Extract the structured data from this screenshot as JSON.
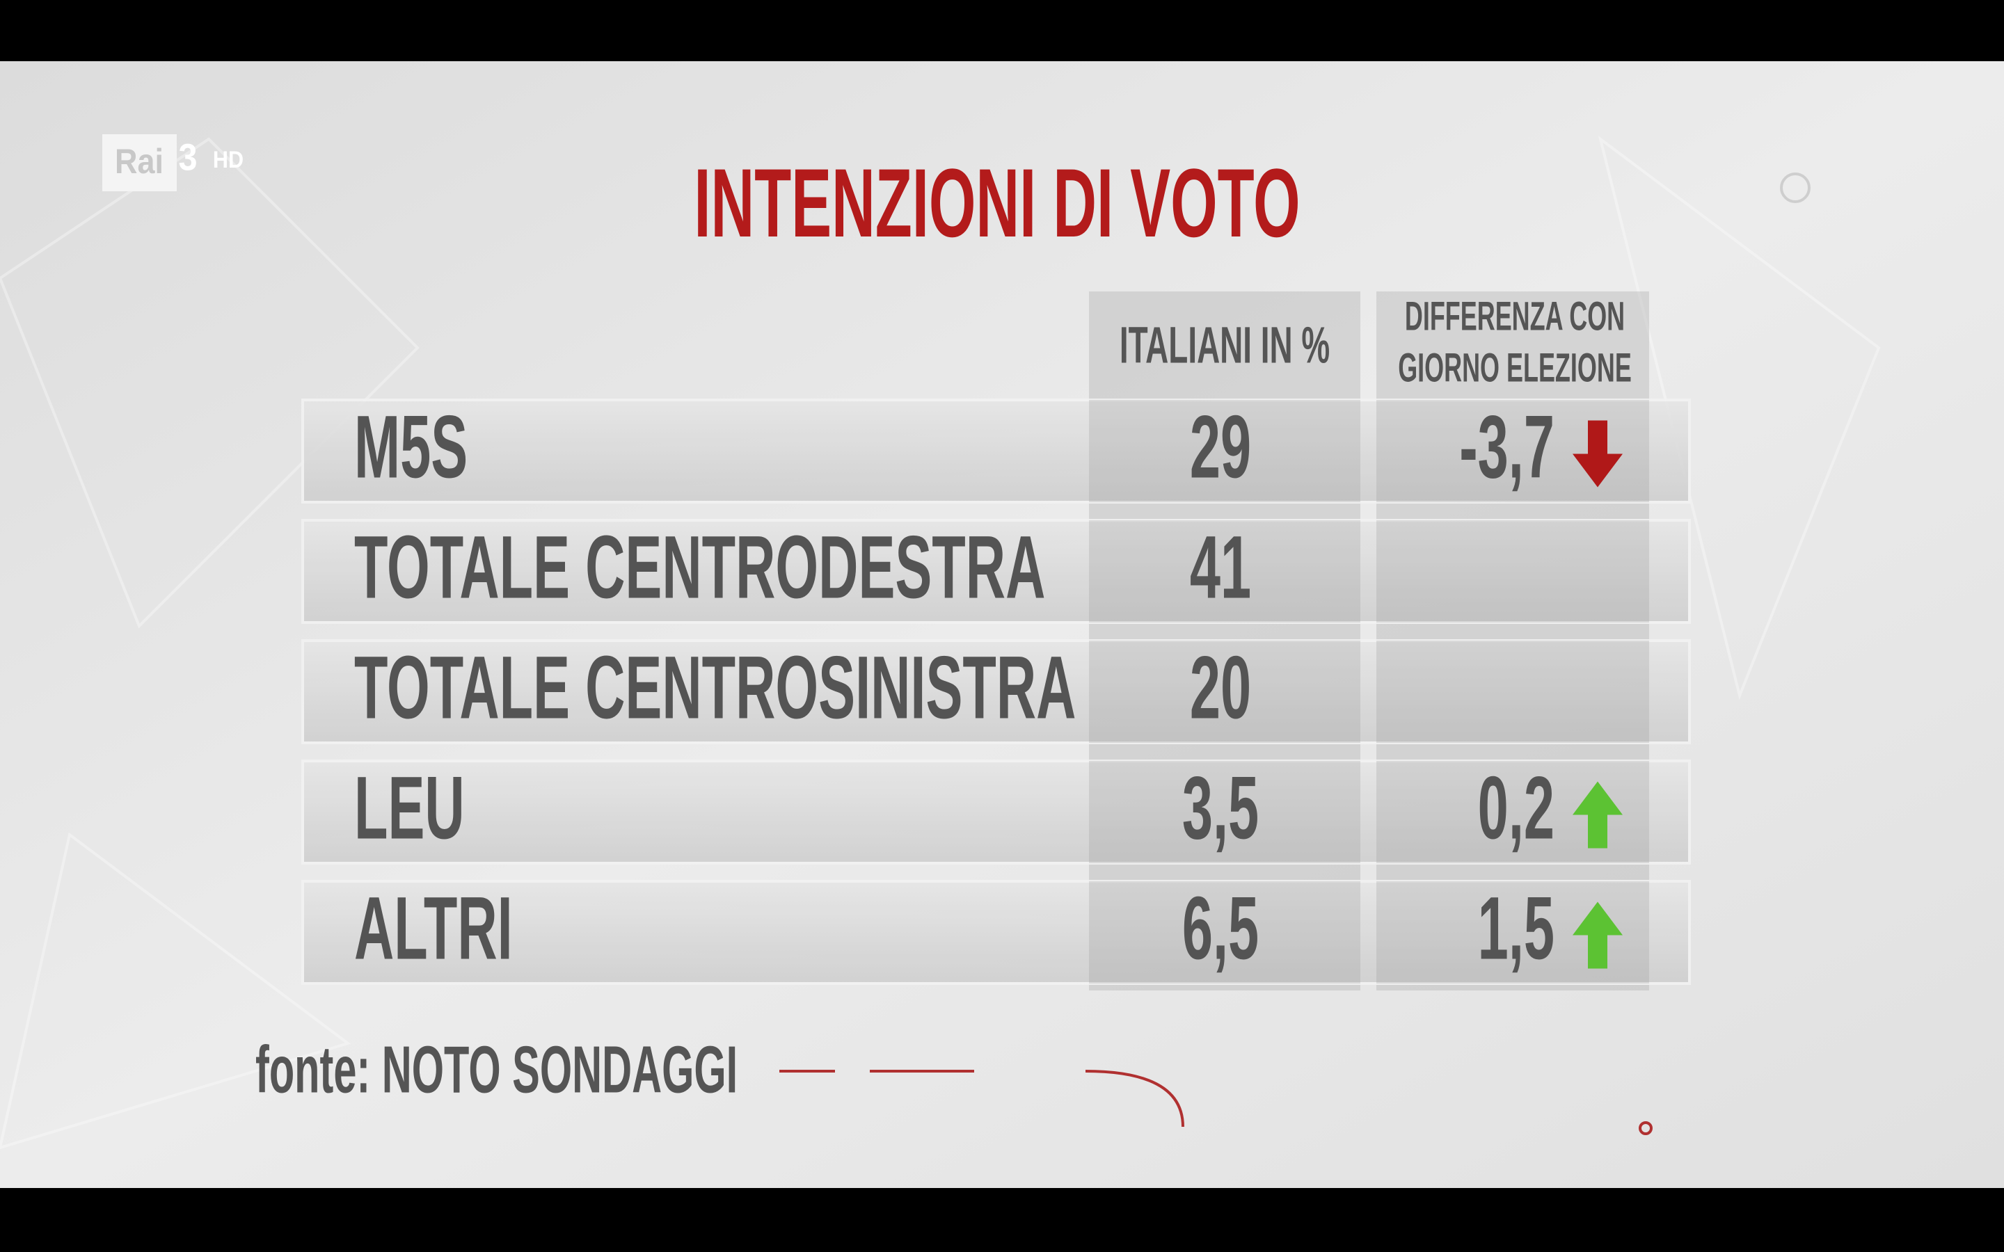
{
  "logo": {
    "brand": "Rai",
    "channel": "3",
    "quality": "HD"
  },
  "title": "INTENZIONI DI VOTO",
  "table": {
    "headers": [
      "ITALIANI IN %",
      [
        "DIFFERENZA CON",
        "GIORNO ELEZIONE"
      ]
    ],
    "rows": [
      {
        "name": "M5S",
        "value": "29",
        "diff": "-3,7"
      },
      {
        "name": "TOTALE CENTRODESTRA",
        "value": "41"
      },
      {
        "name": "TOTALE CENTROSINISTRA",
        "value": "20"
      },
      {
        "name": "LEU",
        "value": "3,5",
        "diff": "0,2"
      },
      {
        "name": "ALTRI",
        "value": "6,5",
        "diff": "1,5"
      }
    ]
  },
  "source": "fonte: NOTO SONDAGGI"
}
